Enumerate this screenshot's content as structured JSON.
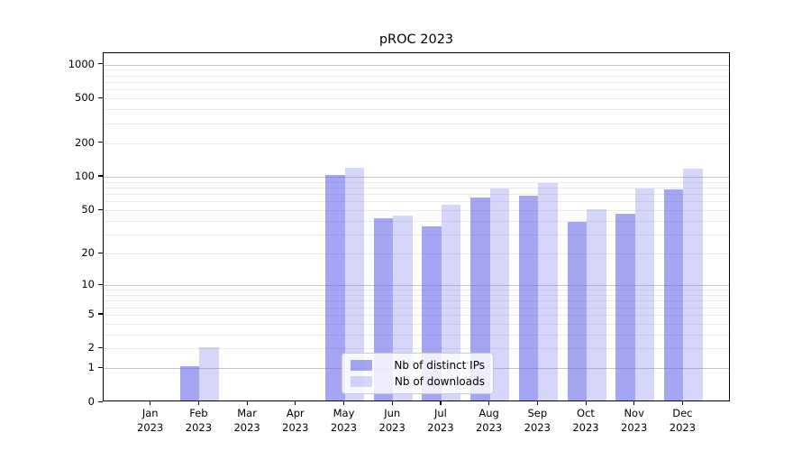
{
  "title": "pROC 2023",
  "chart_data": {
    "type": "bar",
    "title": "pROC 2023",
    "categories": [
      "Jan 2023",
      "Feb 2023",
      "Mar 2023",
      "Apr 2023",
      "May 2023",
      "Jun 2023",
      "Jul 2023",
      "Aug 2023",
      "Sep 2023",
      "Oct 2023",
      "Nov 2023",
      "Dec 2023"
    ],
    "series": [
      {
        "name": "Nb of distinct IPs",
        "color": "rgba(90,92,235,0.55)",
        "color_hex": "#a5a6f3",
        "values": [
          0,
          1,
          0,
          0,
          100,
          41,
          34,
          63,
          65,
          38,
          45,
          74
        ]
      },
      {
        "name": "Nb of downloads",
        "color": "rgba(90,92,235,0.25)",
        "color_hex": "#d9daf9",
        "values": [
          0,
          2,
          0,
          0,
          117,
          43,
          54,
          76,
          84,
          49,
          75,
          113
        ]
      }
    ],
    "xlabel": "",
    "ylabel": "",
    "yscale": "log1p",
    "ylim": [
      0,
      1270
    ],
    "y_ticks": [
      0,
      1,
      2,
      5,
      10,
      20,
      50,
      100,
      200,
      500,
      1000
    ],
    "gridlines_major": [
      1,
      10,
      100,
      1000
    ],
    "gridlines_minor": [
      2,
      3,
      4,
      5,
      6,
      7,
      8,
      9,
      20,
      30,
      40,
      50,
      60,
      70,
      80,
      90,
      200,
      300,
      400,
      500,
      600,
      700,
      800,
      900
    ],
    "grid": true,
    "legend_position": "lower-center-inside"
  },
  "colors": {
    "background": "#ffffff",
    "spine": "#000000",
    "grid_major": "#c6c6c6",
    "grid_minor": "#ebebeb"
  },
  "legend": {
    "items": [
      "Nb of distinct IPs",
      "Nb of downloads"
    ]
  }
}
